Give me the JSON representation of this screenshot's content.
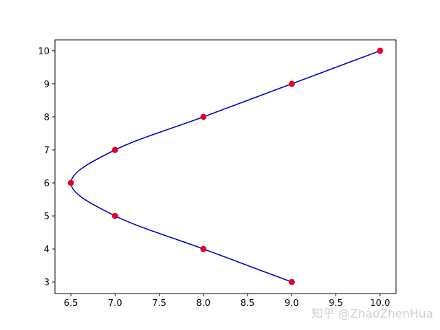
{
  "chart_data": {
    "type": "scatter",
    "x": [
      9,
      8,
      7,
      6.5,
      7,
      8,
      9,
      10
    ],
    "values": [
      3,
      4,
      5,
      6,
      7,
      8,
      9,
      10
    ],
    "color": "#e4002b",
    "line_color": "#0000c8",
    "xlim": [
      6.32,
      10.18
    ],
    "ylim": [
      2.65,
      10.33
    ],
    "xticks": [
      6.5,
      {
        "value": 7,
        "label": "7.0"
      },
      7.5,
      {
        "value": 8,
        "label": "8.0"
      },
      8.5,
      {
        "value": 9,
        "label": "9.0"
      },
      9.5,
      {
        "value": 10,
        "label": "10.0"
      }
    ],
    "yticks": [
      3,
      4,
      5,
      6,
      7,
      8,
      9,
      10
    ],
    "watermark": "知乎 @ZhaoZhenHua"
  }
}
